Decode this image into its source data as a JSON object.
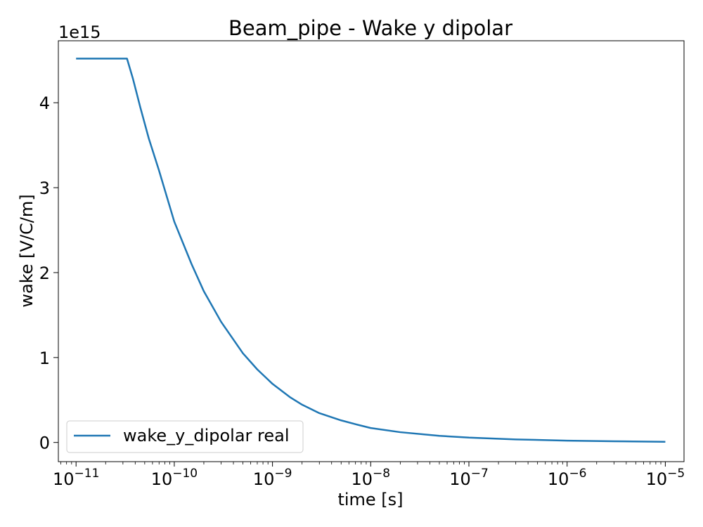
{
  "chart_data": {
    "type": "line",
    "title": "Beam_pipe - Wake y dipolar",
    "xlabel": "time [s]",
    "ylabel": "wake [V/C/m]",
    "x_scale": "log",
    "y_offset_text": "1e15",
    "xlim": [
      6.6e-12,
      1.55e-05
    ],
    "ylim": [
      -0.226,
      4.73
    ],
    "grid": false,
    "legend_position": "lower-left",
    "x_ticks": [
      {
        "value": 1e-11,
        "base": "10",
        "exp": "−11"
      },
      {
        "value": 1e-10,
        "base": "10",
        "exp": "−10"
      },
      {
        "value": 1e-09,
        "base": "10",
        "exp": "−9"
      },
      {
        "value": 1e-08,
        "base": "10",
        "exp": "−8"
      },
      {
        "value": 1e-07,
        "base": "10",
        "exp": "−7"
      },
      {
        "value": 1e-06,
        "base": "10",
        "exp": "−6"
      },
      {
        "value": 1e-05,
        "base": "10",
        "exp": "−5"
      }
    ],
    "y_ticks": [
      {
        "value": 0,
        "label": "0"
      },
      {
        "value": 1,
        "label": "1"
      },
      {
        "value": 2,
        "label": "2"
      },
      {
        "value": 3,
        "label": "3"
      },
      {
        "value": 4,
        "label": "4"
      }
    ],
    "series": [
      {
        "name": "wake_y_dipolar real",
        "color": "#1f77b4",
        "x": [
          1e-11,
          2e-11,
          3.3e-11,
          3.8e-11,
          4.5e-11,
          5.5e-11,
          7e-11,
          1e-10,
          1.5e-10,
          2e-10,
          3e-10,
          5e-10,
          7e-10,
          1e-09,
          1.5e-09,
          2e-09,
          3e-09,
          5e-09,
          7e-09,
          1e-08,
          2e-08,
          5e-08,
          1e-07,
          3e-07,
          1e-06,
          3e-06,
          1e-05
        ],
        "y": [
          4.52,
          4.52,
          4.52,
          4.28,
          3.95,
          3.58,
          3.2,
          2.6,
          2.1,
          1.78,
          1.42,
          1.05,
          0.86,
          0.69,
          0.535,
          0.445,
          0.345,
          0.26,
          0.215,
          0.17,
          0.121,
          0.078,
          0.057,
          0.036,
          0.021,
          0.014,
          0.008
        ]
      }
    ]
  }
}
